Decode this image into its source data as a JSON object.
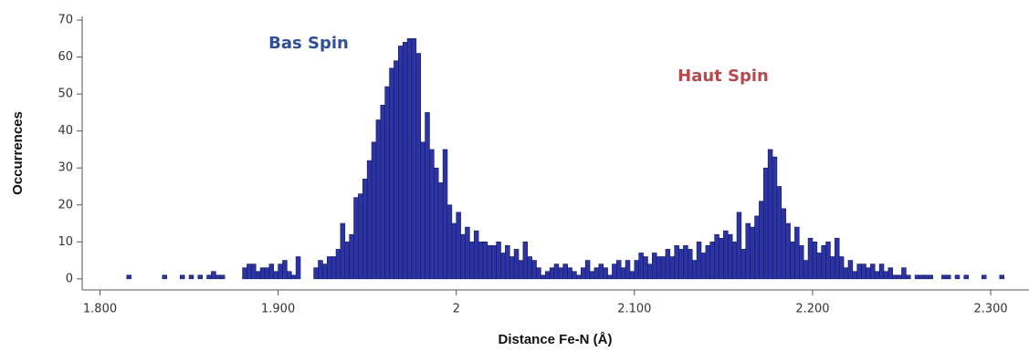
{
  "chart_data": {
    "type": "histogram",
    "xlabel": "Distance Fe-N (Å)",
    "ylabel": "Occurrences",
    "annotations": [
      {
        "text": "Bas Spin",
        "color": "#2f4f9a"
      },
      {
        "text": "Haut Spin",
        "color": "#b8484d"
      }
    ],
    "color": "#2c33a3",
    "bins": [
      1.8125,
      1.815,
      1.8175,
      1.82,
      1.8225,
      1.825,
      1.8275,
      1.83,
      1.8325,
      1.835,
      1.8375,
      1.84,
      1.8425,
      1.845,
      1.8475,
      1.85,
      1.8525,
      1.855,
      1.8575,
      1.86,
      1.8625,
      1.865,
      1.8675,
      1.87,
      1.8725,
      1.875,
      1.8775,
      1.88,
      1.8825,
      1.885,
      1.8875,
      1.89,
      1.8925,
      1.895,
      1.8975,
      1.9,
      1.9025,
      1.905,
      1.9075,
      1.91,
      1.9125,
      1.915,
      1.9175,
      1.92,
      1.9225,
      1.925,
      1.9275,
      1.93,
      1.9325,
      1.935,
      1.9375,
      1.94,
      1.9425,
      1.945,
      1.9475,
      1.95,
      1.9525,
      1.955,
      1.9575,
      1.96,
      1.9625,
      1.965,
      1.9675,
      1.97,
      1.9725,
      1.975,
      1.9775,
      1.98,
      1.9825,
      1.985,
      1.9875,
      1.99,
      1.9925,
      1.995,
      1.9975,
      2.0,
      2.0025,
      2.005,
      2.0075,
      2.01,
      2.0125,
      2.015,
      2.0175,
      2.02,
      2.0225,
      2.025,
      2.0275,
      2.03,
      2.0325,
      2.035,
      2.0375,
      2.04,
      2.0425,
      2.045,
      2.0475,
      2.05,
      2.0525,
      2.055,
      2.0575,
      2.06,
      2.0625,
      2.065,
      2.0675,
      2.07,
      2.0725,
      2.075,
      2.0775,
      2.08,
      2.0825,
      2.085,
      2.0875,
      2.09,
      2.0925,
      2.095,
      2.0975,
      2.1,
      2.1025,
      2.105,
      2.1075,
      2.11,
      2.1125,
      2.115,
      2.1175,
      2.12,
      2.1225,
      2.125,
      2.1275,
      2.13,
      2.1325,
      2.135,
      2.1375,
      2.14,
      2.1425,
      2.145,
      2.1475,
      2.15,
      2.1525,
      2.155,
      2.1575,
      2.16,
      2.1625,
      2.165,
      2.1675,
      2.17,
      2.1725,
      2.175,
      2.1775,
      2.18,
      2.1825,
      2.185,
      2.1875,
      2.19,
      2.1925,
      2.195,
      2.1975,
      2.2,
      2.2025,
      2.205,
      2.2075,
      2.21,
      2.2125,
      2.215,
      2.2175,
      2.22,
      2.2225,
      2.225,
      2.2275,
      2.23,
      2.2325,
      2.235,
      2.2375,
      2.24,
      2.2425,
      2.245,
      2.2475,
      2.25,
      2.2525,
      2.255,
      2.2575,
      2.26,
      2.2625,
      2.265,
      2.2675,
      2.27,
      2.2725,
      2.275,
      2.2775,
      2.28,
      2.2825,
      2.285,
      2.2875,
      2.29,
      2.2925,
      2.295,
      2.2975,
      2.3,
      2.3025,
      2.305,
      2.3075
    ],
    "values": [
      0,
      1,
      0,
      0,
      0,
      0,
      0,
      0,
      0,
      1,
      0,
      0,
      0,
      1,
      0,
      1,
      0,
      1,
      0,
      1,
      2,
      1,
      1,
      0,
      0,
      0,
      0,
      3,
      4,
      4,
      2,
      3,
      3,
      4,
      2,
      4,
      5,
      2,
      1,
      6,
      0,
      0,
      0,
      3,
      5,
      4,
      6,
      6,
      8,
      15,
      10,
      12,
      22,
      23,
      27,
      32,
      37,
      43,
      47,
      52,
      57,
      59,
      63,
      64,
      65,
      65,
      61,
      37,
      45,
      35,
      30,
      26,
      35,
      20,
      15,
      18,
      12,
      14,
      10,
      13,
      10,
      10,
      9,
      9,
      10,
      7,
      9,
      6,
      8,
      5,
      10,
      6,
      5,
      3,
      1,
      2,
      3,
      4,
      3,
      4,
      3,
      2,
      1,
      3,
      5,
      2,
      3,
      4,
      3,
      1,
      4,
      5,
      3,
      5,
      2,
      5,
      7,
      6,
      4,
      7,
      6,
      6,
      8,
      6,
      9,
      8,
      9,
      8,
      5,
      10,
      7,
      9,
      10,
      12,
      11,
      13,
      12,
      10,
      18,
      8,
      15,
      14,
      17,
      21,
      30,
      35,
      33,
      25,
      19,
      15,
      10,
      14,
      9,
      5,
      11,
      10,
      7,
      9,
      10,
      6,
      11,
      6,
      3,
      5,
      2,
      4,
      4,
      3,
      4,
      2,
      4,
      2,
      3,
      1,
      1,
      3,
      1,
      0,
      1,
      1,
      1,
      1,
      0,
      0,
      1,
      1,
      0,
      1,
      0,
      1,
      0,
      0,
      0,
      1,
      0,
      0,
      0,
      1
    ],
    "xlim": [
      1.79,
      2.3215
    ],
    "ylim": [
      -3,
      71
    ],
    "xticks": [
      {
        "value": 1.8,
        "label": "1.800"
      },
      {
        "value": 1.9,
        "label": "1.900"
      },
      2,
      {
        "value": 2.1,
        "label": "2.100"
      },
      {
        "value": 2.2,
        "label": "2.200"
      },
      {
        "value": 2.3,
        "label": "2.300"
      }
    ],
    "yticks": [
      0,
      10,
      20,
      30,
      40,
      50,
      60,
      70
    ]
  }
}
